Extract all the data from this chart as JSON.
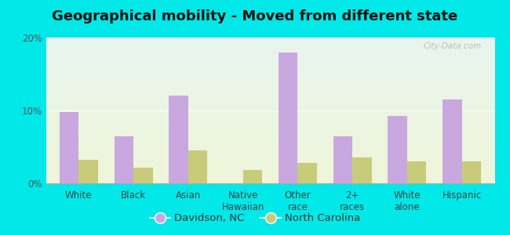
{
  "title": "Geographical mobility - Moved from different state",
  "categories": [
    "White",
    "Black",
    "Asian",
    "Native\nHawaiian",
    "Other\nrace",
    "2+\nraces",
    "White\nalone",
    "Hispanic"
  ],
  "davidson_values": [
    9.8,
    6.5,
    12.0,
    0.0,
    18.0,
    6.5,
    9.3,
    11.5
  ],
  "nc_values": [
    3.2,
    2.2,
    4.5,
    1.8,
    2.8,
    3.5,
    3.0,
    3.0
  ],
  "davidson_color": "#c9a8e0",
  "nc_color": "#c8cc7a",
  "bar_width": 0.35,
  "ylim": [
    0,
    20
  ],
  "yticks": [
    0,
    10,
    20
  ],
  "ytick_labels": [
    "0%",
    "10%",
    "20%"
  ],
  "legend_davidson": "Davidson, NC",
  "legend_nc": "North Carolina",
  "bg_color": "#00e8e8",
  "plot_bg_top_color": "#e8f5ee",
  "plot_bg_bottom_color": "#eef5d8",
  "title_fontsize": 13,
  "tick_fontsize": 8.5,
  "legend_fontsize": 9.5,
  "watermark": "City-Data.com"
}
